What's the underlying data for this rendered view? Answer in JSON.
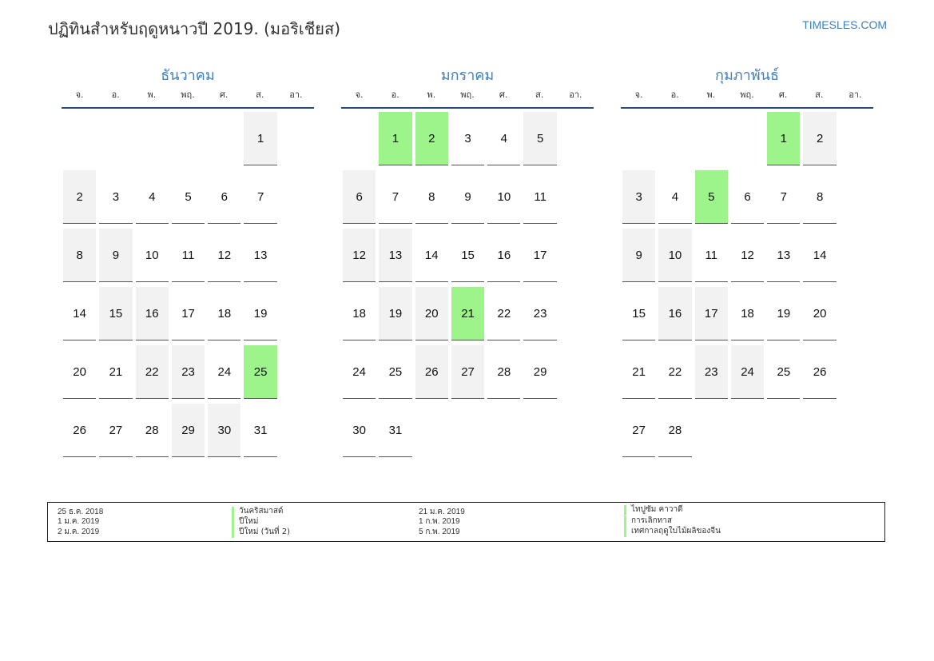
{
  "header": {
    "title": "ปฏิทินสำหรับฤดูหนาวปี 2019. (มอริเชียส)",
    "brand": "TIMESLES.COM"
  },
  "weekday_labels": [
    "จ.",
    "อ.",
    "พ.",
    "พฤ.",
    "ศ.",
    "ส.",
    "อา."
  ],
  "months": [
    {
      "name": "ธันวาคม",
      "offset": 5,
      "days": 31,
      "holidays": [
        25
      ]
    },
    {
      "name": "มกราคม",
      "offset": 1,
      "days": 31,
      "holidays": [
        1,
        2,
        21
      ]
    },
    {
      "name": "กุมภาพันธ์",
      "offset": 4,
      "days": 28,
      "holidays": [
        1,
        5
      ]
    }
  ],
  "legend": {
    "left": [
      {
        "date": "25 ธ.ค. 2018",
        "name": "วันคริสมาสต์"
      },
      {
        "date": "1 ม.ค. 2019",
        "name": "ปีใหม่"
      },
      {
        "date": "2 ม.ค. 2019",
        "name": "ปีใหม่ (วันที่ 2)"
      }
    ],
    "right": [
      {
        "date": "21 ม.ค. 2019",
        "name": "ไทปูซัม คาวาดี"
      },
      {
        "date": "1 ก.พ. 2019",
        "name": "การเลิกทาส"
      },
      {
        "date": "5 ก.พ. 2019",
        "name": "เทศกาลฤดูใบไม้ผลิของจีน"
      }
    ]
  },
  "colors": {
    "accent": "#3d7fbf",
    "holiday": "#9df48a",
    "weekend": "#f2f2f2",
    "rule": "#2a4d7a"
  }
}
